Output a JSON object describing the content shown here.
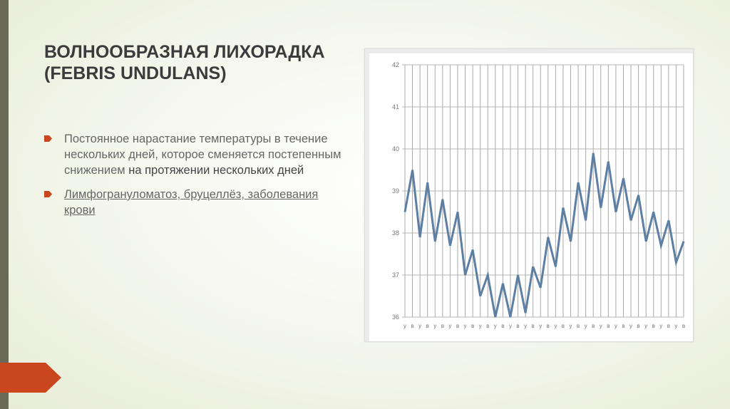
{
  "slide": {
    "title_line1": "ВОЛНООБРАЗНАЯ ЛИХОРАДКА",
    "title_line2": "(FEBRIS UNDULANS)",
    "bullet1_part1": "Постоянное нарастание температуры в течение нескольких дней, которое сменяется постепенным снижением ",
    "bullet1_part2": "на протяжении нескольких дней",
    "bullet2_link": "Лимфогрануломатоз, бруцеллёз, заболевания крови",
    "accent_color": "#c9461f",
    "sidebar_color": "#6b6a57"
  },
  "chart_data": {
    "type": "line",
    "ylim": [
      36,
      42
    ],
    "yticks": [
      "42",
      "41",
      "40",
      "39",
      "38",
      "37",
      "36"
    ],
    "x_label_pattern": [
      "у",
      "в"
    ],
    "x_label_count": 38,
    "line_color": "#5d7fa3",
    "grid": true,
    "series": [
      {
        "values": [
          38.5,
          39.5,
          37.9,
          39.2,
          37.8,
          38.8,
          37.7,
          38.5,
          37.0,
          37.6,
          36.5,
          37.0,
          36.0,
          36.8,
          36.0,
          37.0,
          36.1,
          37.2,
          36.7,
          37.9,
          37.2,
          38.6,
          37.8,
          39.2,
          38.3,
          39.9,
          38.6,
          39.7,
          38.5,
          39.3,
          38.3,
          38.9,
          37.8,
          38.5,
          37.7,
          38.3,
          37.3,
          37.8
        ]
      }
    ]
  }
}
